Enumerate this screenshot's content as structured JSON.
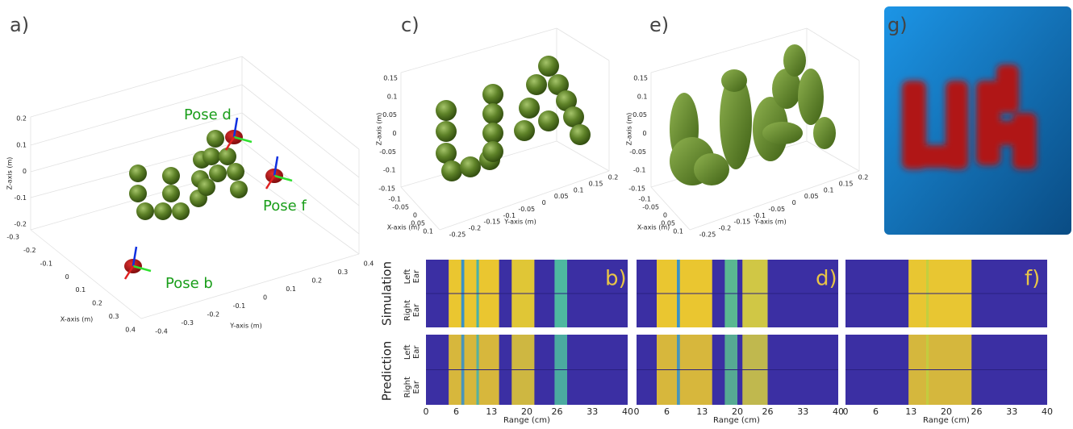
{
  "panel_a": {
    "label": "a)",
    "pose_labels": [
      "Pose d",
      "Pose f",
      "Pose b"
    ],
    "z_axis_label": "Z-axis (m)",
    "x_axis_label": "X-axis (m)",
    "y_axis_label": "Y-axis (m)",
    "zticks": [
      0.2,
      0.1,
      0,
      -0.1,
      -0.2
    ],
    "xticks": [
      -0.3,
      -0.2,
      -0.1,
      0,
      0.1,
      0.2,
      0.3,
      0.4
    ],
    "yticks": [
      -0.4,
      -0.3,
      -0.2,
      -0.1,
      0,
      0.1,
      0.2,
      0.3,
      0.4
    ]
  },
  "panel_c": {
    "label": "c)",
    "z_axis_label": "Z-axis (m)",
    "x_axis_label": "X-axis (m)",
    "y_axis_label": "Y-axis (m)",
    "zticks": [
      0.15,
      0.1,
      0.05,
      0,
      -0.05,
      -0.1,
      -0.15
    ],
    "xticks": [
      -0.1,
      -0.05,
      0,
      0.05,
      0.1
    ],
    "yticks": [
      -0.25,
      -0.2,
      -0.15,
      -0.1,
      -0.05,
      0,
      0.05,
      0.1,
      0.15,
      0.2
    ]
  },
  "panel_e": {
    "label": "e)",
    "z_axis_label": "Z-axis (m)",
    "x_axis_label": "X-axis (m)",
    "y_axis_label": "Y-axis (m)",
    "zticks": [
      0.15,
      0.1,
      0.05,
      0,
      -0.05,
      -0.1,
      -0.15
    ],
    "xticks": [
      -0.1,
      -0.05,
      0,
      0.05,
      0.1
    ],
    "yticks": [
      -0.25,
      -0.2,
      -0.15,
      -0.1,
      -0.05,
      0,
      0.05,
      0.1,
      0.15,
      0.2
    ]
  },
  "panel_g": {
    "label": "g)"
  },
  "spectrograms": {
    "panel_labels": [
      "b)",
      "d)",
      "f)"
    ],
    "row_labels": [
      "Simulation",
      "Prediction"
    ],
    "ear_labels": [
      [
        "Left",
        "Ear"
      ],
      [
        "Right",
        "Ear"
      ]
    ],
    "xticks": [
      0,
      6,
      13,
      20,
      26,
      33,
      40
    ],
    "x_axis_label": "Range (cm)"
  }
}
